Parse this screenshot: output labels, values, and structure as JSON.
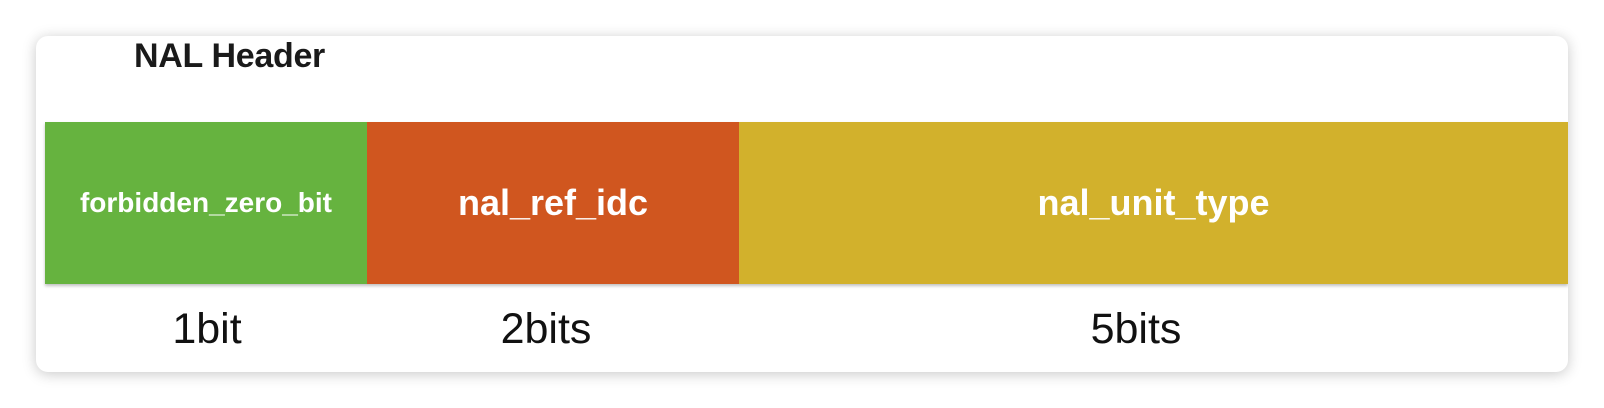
{
  "title": "NAL Header",
  "fields": [
    {
      "name": "forbidden_zero_bit",
      "bits": "1bit",
      "color": "#66b33f"
    },
    {
      "name": "nal_ref_idc",
      "bits": "2bits",
      "color": "#d0561f"
    },
    {
      "name": "nal_unit_type",
      "bits": "5bits",
      "color": "#d2b12c"
    }
  ]
}
